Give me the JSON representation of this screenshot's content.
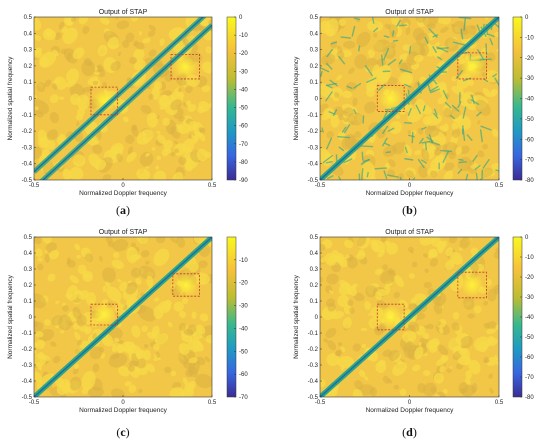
{
  "panels": [
    {
      "id": "a",
      "caption": "(a)",
      "chart_data": {
        "type": "heatmap",
        "title": "Output of STAP",
        "xlabel": "Normalized Doppler frequency",
        "ylabel": "Normalized spatial frequency",
        "xlim": [
          -0.5,
          0.5
        ],
        "ylim": [
          -0.5,
          0.5
        ],
        "x_ticks": [
          -0.5,
          0,
          0.5
        ],
        "y_ticks": [
          -0.5,
          -0.4,
          -0.3,
          -0.2,
          -0.1,
          0,
          0.1,
          0.2,
          0.3,
          0.4,
          0.5
        ],
        "colorbar_range": [
          -90,
          0
        ],
        "colorbar_ticks": [
          0,
          -10,
          -20,
          -30,
          -40,
          -50,
          -60,
          -70,
          -80,
          -90
        ],
        "notch_lines": [
          [
            -0.05,
            0.05
          ]
        ],
        "boxes": [
          {
            "x": [
              -0.18,
              -0.03
            ],
            "y": [
              -0.1,
              0.07
            ]
          },
          {
            "x": [
              0.27,
              0.43
            ],
            "y": [
              0.12,
              0.27
            ]
          }
        ]
      }
    },
    {
      "id": "b",
      "caption": "(b)",
      "chart_data": {
        "type": "heatmap",
        "title": "Output of STAP",
        "xlabel": "Normalized Doppler frequency",
        "ylabel": "Normalized spatial frequency",
        "xlim": [
          -0.5,
          0.5
        ],
        "ylim": [
          -0.5,
          0.5
        ],
        "x_ticks": [
          -0.5,
          0,
          0.5
        ],
        "y_ticks": [
          -0.5,
          -0.4,
          -0.3,
          -0.2,
          -0.1,
          0,
          0.1,
          0.2,
          0.3,
          0.4,
          0.5
        ],
        "colorbar_range": [
          -80,
          0
        ],
        "colorbar_ticks": [
          0,
          -10,
          -20,
          -30,
          -40,
          -50,
          -60,
          -70,
          -80
        ],
        "notch_lines": [
          [
            0,
            0
          ]
        ],
        "boxes": [
          {
            "x": [
              -0.18,
              -0.03
            ],
            "y": [
              -0.08,
              0.08
            ]
          },
          {
            "x": [
              0.27,
              0.43
            ],
            "y": [
              0.12,
              0.28
            ]
          }
        ]
      }
    },
    {
      "id": "c",
      "caption": "(c)",
      "chart_data": {
        "type": "heatmap",
        "title": "Output of STAP",
        "xlabel": "Normalized Doppler frequency",
        "ylabel": "Normalized spatial frequency",
        "xlim": [
          -0.5,
          0.5
        ],
        "ylim": [
          -0.5,
          0.5
        ],
        "x_ticks": [
          -0.5,
          0,
          0.5
        ],
        "y_ticks": [
          -0.5,
          -0.4,
          -0.3,
          -0.2,
          -0.1,
          0,
          0.1,
          0.2,
          0.3,
          0.4,
          0.5
        ],
        "colorbar_range": [
          -70,
          0
        ],
        "colorbar_ticks": [
          -10,
          -20,
          -30,
          -40,
          -50,
          -60,
          -70
        ],
        "notch_lines": [
          [
            0,
            0
          ]
        ],
        "boxes": [
          {
            "x": [
              -0.18,
              -0.03
            ],
            "y": [
              -0.05,
              0.08
            ]
          },
          {
            "x": [
              0.28,
              0.43
            ],
            "y": [
              0.13,
              0.27
            ]
          }
        ]
      }
    },
    {
      "id": "d",
      "caption": "(d)",
      "chart_data": {
        "type": "heatmap",
        "title": "Output of STAP",
        "xlabel": "Normalized Doppler frequency",
        "ylabel": "Normalized spatial frequency",
        "xlim": [
          -0.5,
          0.5
        ],
        "ylim": [
          -0.5,
          0.5
        ],
        "x_ticks": [
          -0.5,
          0,
          0.5
        ],
        "y_ticks": [
          -0.5,
          -0.4,
          -0.3,
          -0.2,
          -0.1,
          0,
          0.1,
          0.2,
          0.3,
          0.4,
          0.5
        ],
        "colorbar_range": [
          -80,
          0
        ],
        "colorbar_ticks": [
          0,
          -10,
          -20,
          -30,
          -40,
          -50,
          -60,
          -70,
          -80
        ],
        "notch_lines": [
          [
            0,
            0
          ]
        ],
        "boxes": [
          {
            "x": [
              -0.18,
              -0.03
            ],
            "y": [
              -0.08,
              0.08
            ]
          },
          {
            "x": [
              0.27,
              0.43
            ],
            "y": [
              0.12,
              0.28
            ]
          }
        ]
      }
    }
  ],
  "colors": {
    "background": "#f2c646",
    "noise_light": "#f7d948",
    "noise_dark": "#dbb244",
    "notch": "#2aa68c",
    "notch_core": "#1f6f9a",
    "box_stroke": "#c0392b",
    "target_hot": "#fff23a"
  }
}
